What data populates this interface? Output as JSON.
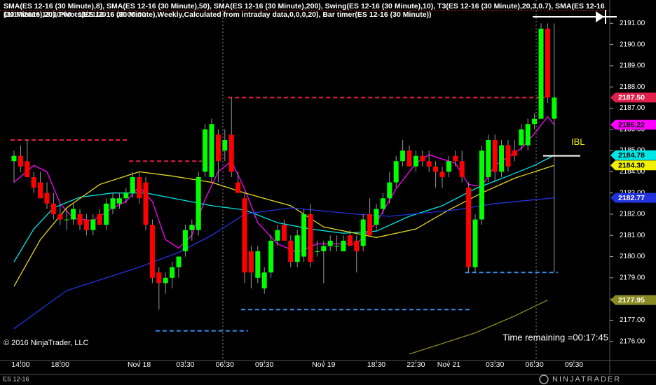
{
  "chart_data": {
    "type": "candlestick",
    "indicators_text": "SMA(ES 12-16 (30 Minute),8), SMA(ES 12-16 (30 Minute),50), SMA(ES 12-16 (30 Minute),200), Swing(ES 12-16 (30 Minute),10), T3(ES 12-16 (30 Minute),20,3,0.7), SMA(ES 12-16 (30 Minute),20), Pivots(ES 12-16 (30 Minute),Weekly,Calculated from intraday data,0,0,0,20), Bar timer(ES 12-16 (30 Minute))",
    "date_range": "11/17/2016 13:30:00 - 11/21/2016 08:00:00",
    "copyright": "© 2016 NinjaTrader, LLC",
    "instrument": "ES 12-16",
    "brand": "NINJATRADER",
    "timer": "Time remaining =00:17:45",
    "categories": [
      null,
      "14:00",
      null,
      null,
      null,
      null,
      null,
      "18:00",
      null,
      null,
      null,
      null,
      null,
      null,
      null,
      null,
      null,
      null,
      null,
      "Nov 18",
      null,
      null,
      null,
      null,
      null,
      null,
      "03:30",
      null,
      null,
      null,
      null,
      null,
      "06:30",
      null,
      null,
      null,
      null,
      null,
      "09:30",
      null,
      null,
      null,
      null,
      null,
      null,
      null,
      null,
      "Nov 19",
      null,
      null,
      null,
      null,
      null,
      null,
      null,
      "18:30",
      null,
      null,
      null,
      null,
      null,
      "22:30",
      null,
      null,
      null,
      null,
      "Nov 21",
      null,
      null,
      null,
      null,
      null,
      null,
      "03:30",
      null,
      null,
      null,
      null,
      null,
      "06:30",
      null,
      null,
      null,
      null,
      null,
      "09:30",
      null
    ],
    "open": [
      2184.5,
      2184.75,
      2184.5,
      2183.75,
      2183.5,
      2183,
      2182.5,
      2182,
      2181.75,
      2181.75,
      2182,
      2181.75,
      2181.25,
      2182,
      2181.5,
      2182.25,
      2182.5,
      2182.75,
      2183,
      2183.75,
      2183.5,
      2181.5,
      2179.25,
      2178.75,
      2179,
      2179.5,
      2180.25,
      2181.25,
      2181.25,
      2184,
      2183.75,
      2185.75,
      2185,
      2185.75,
      2183.5,
      2182.75,
      2180.25,
      2179,
      2178.5,
      2179.25,
      2180.75,
      2181.5,
      2180.75,
      2179.75,
      2180,
      2182,
      2180.25,
      2180.25,
      2180.5,
      2180.5,
      2180.25,
      2181,
      2180.75,
      2180.5,
      2182,
      2181.5,
      2182.25,
      2182.75,
      2183.5,
      2184.5,
      2185,
      2184.25,
      2184.75,
      2184.5,
      2184.25,
      2184,
      2184,
      2184.75,
      2184.5,
      2183.25,
      2179.5,
      2181.75,
      2183.75,
      2185.5,
      2184,
      2185.25,
      2185,
      2185.25,
      2185.25,
      2186.25,
      2186.5,
      2190.75,
      2186.5,
      null,
      null,
      null,
      null
    ],
    "high": [
      2185,
      2185.25,
      2185.5,
      2184,
      2184,
      2183.5,
      2183,
      2182.5,
      2182.25,
      2182.5,
      2182.25,
      2182,
      2182,
      2182.25,
      2182.75,
      2183,
      2183,
      2183.25,
      2184,
      2184,
      2183.75,
      2181.75,
      2179.5,
      2179.25,
      2179.75,
      2180,
      2181.5,
      2181.75,
      2184,
      2186.25,
      2186.5,
      2186,
      2186,
      2187.5,
      2184,
      2183,
      2180.5,
      2180.5,
      2179.5,
      2181,
      2181.5,
      2181.75,
      2181,
      2181.25,
      2182.25,
      2182.5,
      2180.75,
      2180.75,
      2181,
      2181,
      2181,
      2181.25,
      2181,
      2182,
      2182.75,
      2182.5,
      2183,
      2184,
      2184.75,
      2185.5,
      2185.25,
      2185,
      2185,
      2185,
      2184.5,
      2184.25,
      2184.75,
      2185,
      2185,
      2183.5,
      2182,
      2185.25,
      2185.75,
      2185.75,
      2185.5,
      2185.5,
      2185.5,
      2186.25,
      2186.5,
      2186.75,
      2191,
      2191,
      2191,
      null,
      null,
      null,
      null
    ],
    "low": [
      2183.5,
      2184,
      2183.75,
      2183,
      2182.75,
      2182.25,
      2181.75,
      2181.5,
      2181.25,
      2181.5,
      2181.25,
      2181,
      2181,
      2181.5,
      2181.25,
      2182,
      2182.25,
      2182.5,
      2182.75,
      2182.5,
      2181.25,
      2178.75,
      2177.5,
      2178.25,
      2178.5,
      2179,
      2180,
      2180.75,
      2181,
      2183.75,
      2183.5,
      2183.5,
      2184.5,
      2183.75,
      2183,
      2178.75,
      2178.5,
      2178.75,
      2178.25,
      2179,
      2180.5,
      2180.75,
      2179.5,
      2179.5,
      2179.75,
      2179.5,
      2180,
      2178.75,
      2180.25,
      2180.25,
      2180.25,
      2180.5,
      2179.25,
      2180.25,
      2181,
      2181.25,
      2182,
      2182.5,
      2183.25,
      2184.25,
      2184.25,
      2184,
      2184.25,
      2184,
      2183.25,
      2183.25,
      2183.75,
      2184.25,
      2183.5,
      2179.25,
      2179.25,
      2181.5,
      2183.5,
      2183.5,
      2183.75,
      2184,
      2184.5,
      2185,
      2185,
      2186,
      2186.5,
      2187.25,
      2179.25,
      null,
      null,
      null,
      null
    ],
    "close": [
      2184.75,
      2184.25,
      2183.75,
      2183.25,
      2182.75,
      2182.5,
      2182,
      2181.75,
      2181.75,
      2182.25,
      2181.5,
      2181.25,
      2181.75,
      2181.5,
      2182.5,
      2182.75,
      2182.75,
      2183,
      2183.75,
      2182.75,
      2181.5,
      2179,
      2178.75,
      2179,
      2179.5,
      2180,
      2181.25,
      2181.5,
      2183.75,
      2186,
      2186.25,
      2184.5,
      2185.5,
      2184,
      2183,
      2179.25,
      2179.25,
      2180.25,
      2179.25,
      2180.75,
      2181.25,
      2180.75,
      2179.75,
      2181,
      2182,
      2179.75,
      2180.25,
      2180.5,
      2180.75,
      2180.5,
      2180.75,
      2180.5,
      2180.25,
      2181.75,
      2181,
      2182.25,
      2182.75,
      2183.5,
      2184.5,
      2185,
      2184.25,
      2184.75,
      2184.5,
      2184.25,
      2184,
      2183.75,
      2184.5,
      2184.5,
      2183.75,
      2179.5,
      2181.75,
      2185,
      2185.5,
      2184,
      2185.25,
      2184.25,
      2184.75,
      2186,
      2186.25,
      2186.5,
      2190.75,
      2187.5,
      2187.5,
      null,
      null,
      null,
      null
    ],
    "up_color": "#00ff00",
    "down_color": "#ff0000",
    "series": [
      {
        "color": "#ff00ff",
        "x": [
          0,
          3,
          5,
          7,
          9,
          12,
          15,
          17,
          19,
          21,
          23,
          25,
          27,
          29,
          31,
          33,
          35,
          37,
          40,
          43,
          46,
          49,
          52,
          55,
          58,
          61,
          63,
          65,
          67,
          69,
          71,
          73,
          75,
          77,
          79,
          81,
          82
        ],
        "values": [
          2183.5,
          2184.3,
          2184,
          2182.5,
          2181.8,
          2181.7,
          2182.3,
          2182.6,
          2183.3,
          2182.6,
          2180.8,
          2180.4,
          2181,
          2182.7,
          2184,
          2184.5,
          2183.2,
          2181.6,
          2180.6,
          2180.2,
          2180.6,
          2180.6,
          2180.6,
          2181.6,
          2183.2,
          2184.4,
          2184.8,
          2184.6,
          2184.4,
          2183.4,
          2183.3,
          2184.3,
          2184.7,
          2185.1,
          2185.8,
          2186.6,
          2186.22
        ]
      },
      {
        "color": "#00e5e5",
        "x": [
          0,
          3,
          6,
          10,
          15,
          20,
          25,
          30,
          35,
          40,
          45,
          50,
          55,
          60,
          65,
          70,
          75,
          79,
          82
        ],
        "values": [
          2179.75,
          2181.3,
          2182.3,
          2182.8,
          2183,
          2183,
          2182.7,
          2182.4,
          2182.2,
          2181.6,
          2181.3,
          2181.1,
          2181.2,
          2181.9,
          2182.4,
          2183.2,
          2183.8,
          2184.3,
          2184.78
        ]
      },
      {
        "color": "#e6d81e",
        "x": [
          0,
          4,
          8,
          13,
          19,
          24,
          30,
          35,
          42,
          47,
          55,
          61,
          66,
          71,
          76,
          82
        ],
        "values": [
          2178.6,
          2180.8,
          2182.3,
          2183.4,
          2184,
          2183.8,
          2183.5,
          2183,
          2182.4,
          2181.4,
          2180.9,
          2181.3,
          2182.2,
          2183,
          2183.7,
          2184.3
        ]
      },
      {
        "color": "#2233dd",
        "x": [
          0,
          8,
          19,
          25,
          30,
          35,
          42,
          52,
          57,
          67,
          73,
          82
        ],
        "values": [
          2176.6,
          2178.4,
          2179.5,
          2180.2,
          2181,
          2182,
          2182.3,
          2182,
          2181.9,
          2182.2,
          2182.5,
          2182.77
        ]
      },
      {
        "color": "#8a8a22",
        "x": [
          60,
          70,
          76,
          81
        ],
        "values": [
          2175.4,
          2176.4,
          2177.2,
          2177.95
        ]
      }
    ],
    "swings": [
      {
        "value": 2185.5,
        "x": [
          0,
          17
        ],
        "color": "#e0204a"
      },
      {
        "value": 2184.5,
        "x": [
          18,
          28
        ],
        "color": "#e0204a"
      },
      {
        "value": 2187.5,
        "x": [
          33,
          80
        ],
        "color": "#e0204a"
      },
      {
        "value": 2176.5,
        "x": [
          22,
          35
        ],
        "color": "#3a8ef0"
      },
      {
        "value": 2177.5,
        "x": [
          35,
          69
        ],
        "color": "#3a8ef0"
      },
      {
        "value": 2179.25,
        "x": [
          69,
          82
        ],
        "color": "#3a8ef0"
      }
    ],
    "price_tags": [
      {
        "value": 2187.5,
        "label": "2187.50",
        "color": "#e0204a",
        "text_color": "#ffffff"
      },
      {
        "value": 2186.22,
        "label": "2186.22",
        "color": "#ff00ff",
        "text_color": "#000000"
      },
      {
        "value": 2184.78,
        "label": "2184.78",
        "color": "#00e5e5",
        "text_color": "#000000"
      },
      {
        "value": 2184.3,
        "label": "2184.30",
        "color": "#f0f000",
        "text_color": "#000000"
      },
      {
        "value": 2182.77,
        "label": "2182.77",
        "color": "#2233dd",
        "text_color": "#ffffff"
      },
      {
        "value": 2177.95,
        "label": "2177.95",
        "color": "#8a8a22",
        "text_color": "#ffffff"
      }
    ],
    "ibl": {
      "label": "IBL",
      "value": 2184.75
    },
    "ylim": [
      2175.1,
      2192.1
    ],
    "yticks": [
      {
        "value": 2176,
        "label": "2176.00"
      },
      {
        "value": 2177,
        "label": "2177.00"
      },
      {
        "value": 2178,
        "label": "2178.00"
      },
      {
        "value": 2179,
        "label": "2179.00"
      },
      {
        "value": 2180,
        "label": "2180.00"
      },
      {
        "value": 2181,
        "label": "2181.00"
      },
      {
        "value": 2182,
        "label": "2182.00"
      },
      {
        "value": 2183,
        "label": "2183.00"
      },
      {
        "value": 2184,
        "label": "2184.00"
      },
      {
        "value": 2185,
        "label": "2185.00"
      },
      {
        "value": 2186,
        "label": "2186.00"
      },
      {
        "value": 2187,
        "label": "2187.00"
      },
      {
        "value": 2188,
        "label": "2188.00"
      },
      {
        "value": 2189,
        "label": "2189.00"
      },
      {
        "value": 2190,
        "label": "2190.00"
      },
      {
        "value": 2191,
        "label": "2191.00"
      }
    ]
  }
}
